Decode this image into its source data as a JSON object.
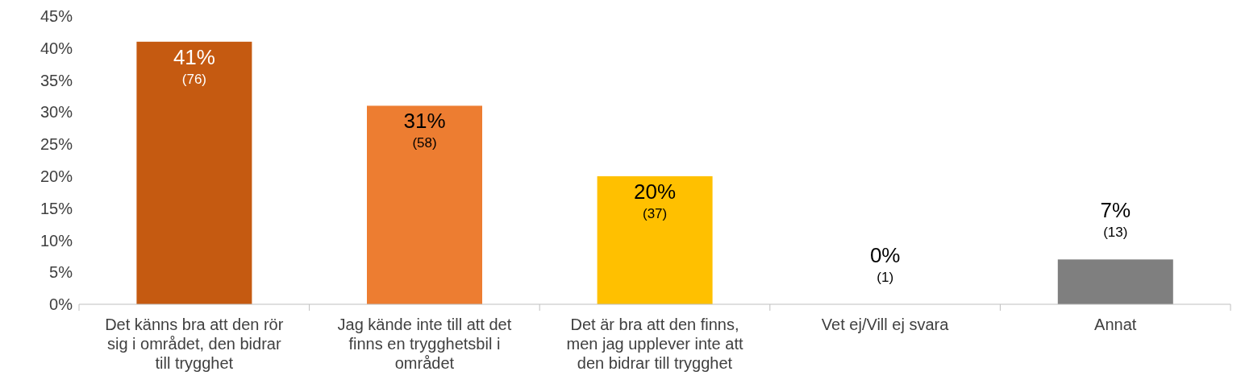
{
  "chart_data": {
    "type": "bar",
    "categories": [
      "Det känns bra att den rör sig i området, den bidrar till trygghet",
      "Jag kände inte till att det finns en trygghetsbil i området",
      "Det är bra att den finns, men jag upplever inte att den bidrar till trygghet",
      "Vet ej/Vill ej svara",
      "Annat"
    ],
    "values": [
      41,
      31,
      20,
      0,
      7
    ],
    "colors": [
      "#c55a11",
      "#ed7d31",
      "#ffc000",
      "#a5a5a5",
      "#7f7f7f"
    ],
    "value_labels": [
      "41%\n(76)",
      "31%\n(58)",
      "20%\n(37)",
      "0%\n(1)",
      "7%\n(13)"
    ],
    "ylim": [
      0,
      45
    ],
    "yticks": [
      {
        "value": 0,
        "label": "0%"
      },
      {
        "value": 5,
        "label": "5%"
      },
      {
        "value": 10,
        "label": "10%"
      },
      {
        "value": 15,
        "label": "15%"
      },
      {
        "value": 20,
        "label": "20%"
      },
      {
        "value": 25,
        "label": "25%"
      },
      {
        "value": 30,
        "label": "30%"
      },
      {
        "value": 35,
        "label": "35%"
      },
      {
        "value": 40,
        "label": "40%"
      },
      {
        "value": 45,
        "label": "45%"
      }
    ],
    "grid": false,
    "legend": false
  }
}
